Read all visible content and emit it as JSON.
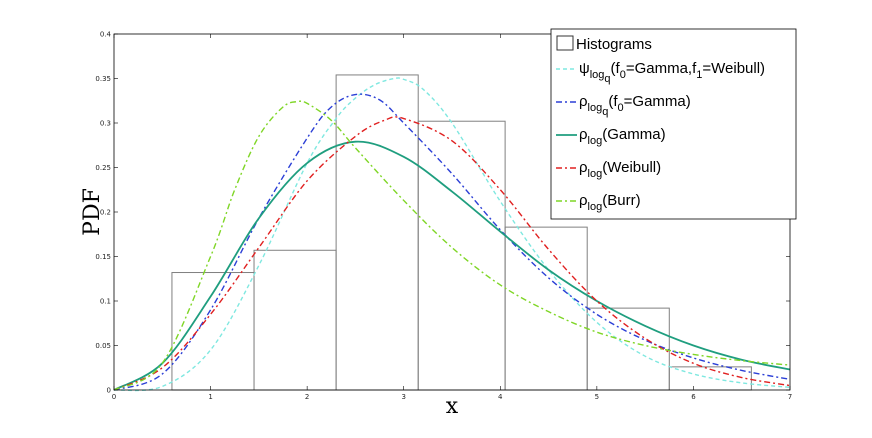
{
  "chart_data": {
    "type": "line",
    "xlabel": "x",
    "ylabel": "PDF",
    "xlim": [
      0,
      7
    ],
    "ylim": [
      0,
      0.4
    ],
    "xticks": [
      "0",
      "1",
      "2",
      "3",
      "4",
      "5",
      "6",
      "7"
    ],
    "yticks": [
      "0",
      "0.05",
      "0.1",
      "0.15",
      "0.2",
      "0.25",
      "0.3",
      "0.35",
      "0.4"
    ],
    "histogram": {
      "name": "Histograms",
      "edges": [
        0.6,
        1.45,
        2.3,
        3.15,
        4.05,
        4.9,
        5.75,
        6.6
      ],
      "heights": [
        0.132,
        0.157,
        0.354,
        0.302,
        0.183,
        0.092,
        0.026
      ],
      "color": "#808080"
    },
    "series": [
      {
        "name": "ψ_logq(f0=Gamma,f1=Weibull)",
        "legend": {
          "sym": "ψ",
          "sub": "log",
          "subsub": "q",
          "rest": "(f",
          "r0sub": "0",
          "r1": "=Gamma,f",
          "r1sub": "1",
          "r2": "=Weibull)"
        },
        "color": "#7fe8e0",
        "dash": "4 3",
        "x": [
          0,
          0.5,
          1.0,
          1.5,
          2.0,
          2.3,
          2.5,
          2.7,
          2.9,
          3.0,
          3.2,
          3.5,
          4.0,
          4.5,
          5.0,
          5.5,
          6.0,
          6.5,
          7.0
        ],
        "y": [
          0,
          0.004,
          0.045,
          0.14,
          0.255,
          0.305,
          0.328,
          0.343,
          0.35,
          0.349,
          0.338,
          0.3,
          0.212,
          0.135,
          0.076,
          0.038,
          0.018,
          0.008,
          0.003
        ]
      },
      {
        "name": "ρ_logq(f0=Gamma)",
        "legend": {
          "sym": "ρ",
          "sub": "log",
          "subsub": "q",
          "rest": "(f",
          "r0sub": "0",
          "r1": "=Gamma)",
          "r1sub": "",
          "r2": ""
        },
        "color": "#2b3fd6",
        "dash": "6 3 2 3",
        "x": [
          0,
          0.5,
          1.0,
          1.5,
          2.0,
          2.25,
          2.5,
          2.75,
          3.0,
          3.5,
          4.0,
          4.5,
          5.0,
          5.5,
          6.0,
          6.5,
          7.0
        ],
        "y": [
          0,
          0.018,
          0.09,
          0.193,
          0.283,
          0.318,
          0.332,
          0.326,
          0.3,
          0.243,
          0.18,
          0.126,
          0.085,
          0.056,
          0.036,
          0.022,
          0.012
        ]
      },
      {
        "name": "ρ_log(Gamma)",
        "legend": {
          "sym": "ρ",
          "sub": "log",
          "subsub": "",
          "rest": "(Gamma)",
          "r0sub": "",
          "r1": "",
          "r1sub": "",
          "r2": ""
        },
        "color": "#1f9e7f",
        "dash": "",
        "x": [
          0,
          0.5,
          1.0,
          1.5,
          2.0,
          2.5,
          3.0,
          3.5,
          4.0,
          4.5,
          5.0,
          5.5,
          6.0,
          6.5,
          7.0
        ],
        "y": [
          0,
          0.03,
          0.105,
          0.193,
          0.255,
          0.279,
          0.262,
          0.223,
          0.178,
          0.135,
          0.1,
          0.072,
          0.05,
          0.034,
          0.023
        ]
      },
      {
        "name": "ρ_log(Weibull)",
        "legend": {
          "sym": "ρ",
          "sub": "log",
          "subsub": "",
          "rest": "(Weibull)",
          "r0sub": "",
          "r1": "",
          "r1sub": "",
          "r2": ""
        },
        "color": "#e02020",
        "dash": "6 3 2 3",
        "x": [
          0,
          0.5,
          1.0,
          1.5,
          2.0,
          2.5,
          2.8,
          3.0,
          3.5,
          4.0,
          4.5,
          5.0,
          5.5,
          6.0,
          6.5,
          7.0
        ],
        "y": [
          0,
          0.025,
          0.085,
          0.16,
          0.235,
          0.285,
          0.303,
          0.305,
          0.28,
          0.225,
          0.158,
          0.1,
          0.058,
          0.03,
          0.014,
          0.005
        ]
      },
      {
        "name": "ρ_log(Burr)",
        "legend": {
          "sym": "ρ",
          "sub": "log",
          "subsub": "",
          "rest": "(Burr)",
          "r0sub": "",
          "r1": "",
          "r1sub": "",
          "r2": ""
        },
        "color": "#7fd626",
        "dash": "6 3 2 3",
        "x": [
          0,
          0.5,
          1.0,
          1.25,
          1.5,
          1.75,
          1.9,
          2.0,
          2.25,
          2.5,
          3.0,
          3.5,
          4.0,
          4.5,
          5.0,
          5.5,
          6.0,
          6.5,
          7.0
        ],
        "y": [
          0,
          0.03,
          0.15,
          0.225,
          0.285,
          0.318,
          0.324,
          0.322,
          0.303,
          0.272,
          0.213,
          0.16,
          0.118,
          0.088,
          0.065,
          0.05,
          0.04,
          0.033,
          0.028
        ]
      }
    ],
    "legend_position": "top-right"
  }
}
